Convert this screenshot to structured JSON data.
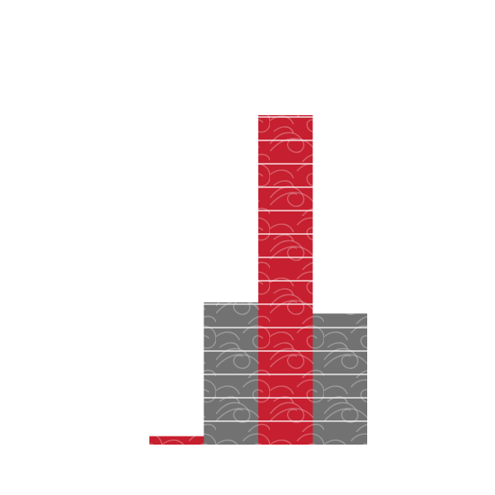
{
  "chart_data": {
    "type": "bar",
    "categories": [
      "",
      "",
      "",
      ""
    ],
    "values": [
      0.36,
      6.08,
      14.08,
      5.6
    ],
    "ylim": [
      0,
      16
    ],
    "grid": true,
    "bar_colors": [
      "#c61f2f",
      "#727272",
      "#c61f2f",
      "#727272"
    ],
    "pattern": "wave-swirl"
  }
}
